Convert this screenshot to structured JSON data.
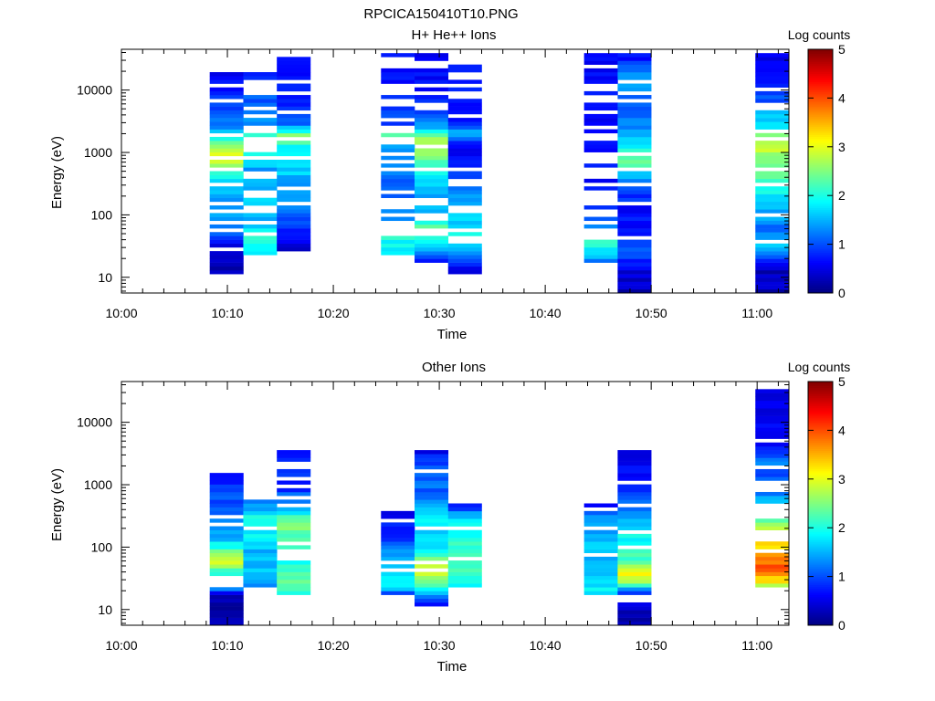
{
  "figure_title": "RPCICA150410T10.PNG",
  "chart_data": [
    {
      "type": "heatmap",
      "title": "H+ He++ Ions",
      "xlabel": "Time",
      "ylabel": "Energy (eV)",
      "colorbar_label": "Log counts",
      "colorbar_ticks": [
        "0",
        "1",
        "2",
        "3",
        "4",
        "5"
      ],
      "colorbar_range": [
        0,
        5
      ],
      "yscale": "log",
      "ylim": [
        5.6,
        45000
      ],
      "y_ticks": [
        10,
        100,
        1000,
        10000
      ],
      "y_tick_labels": [
        "10",
        "100",
        "1000",
        "10000"
      ],
      "xlim": [
        "10:00",
        "11:03"
      ],
      "x_tick_labels": [
        "10:00",
        "10:10",
        "10:20",
        "10:30",
        "10:40",
        "10:50",
        "11:00"
      ],
      "blocks": [
        {
          "start": "10:08:20",
          "end": "10:11:30",
          "emin": 11,
          "emax": 40000,
          "profile": [
            [
              10,
              0.2
            ],
            [
              30,
              0.4
            ],
            [
              60,
              1.2
            ],
            [
              120,
              1.4
            ],
            [
              300,
              1.5
            ],
            [
              600,
              2.6
            ],
            [
              900,
              3.2
            ],
            [
              1500,
              2.3
            ],
            [
              2500,
              1.2
            ],
            [
              6000,
              0.9
            ],
            [
              20000,
              0.6
            ],
            [
              40000,
              0.5
            ]
          ],
          "fill": 0.75
        },
        {
          "start": "10:11:30",
          "end": "10:14:40",
          "emin": 22,
          "emax": 30000,
          "profile": [
            [
              22,
              1.8
            ],
            [
              40,
              2.2
            ],
            [
              80,
              1.4
            ],
            [
              200,
              1.6
            ],
            [
              500,
              1.4
            ],
            [
              1800,
              2.3
            ],
            [
              3000,
              1.3
            ],
            [
              30000,
              0.6
            ]
          ],
          "fill": 0.5
        },
        {
          "start": "10:14:40",
          "end": "10:17:50",
          "emin": 27,
          "emax": 40000,
          "profile": [
            [
              27,
              0.4
            ],
            [
              60,
              0.9
            ],
            [
              200,
              1.3
            ],
            [
              600,
              1.7
            ],
            [
              1200,
              1.9
            ],
            [
              1800,
              2.6
            ],
            [
              3000,
              1.1
            ],
            [
              10000,
              0.7
            ],
            [
              40000,
              0.6
            ]
          ],
          "fill": 0.85
        },
        {
          "start": "10:24:30",
          "end": "10:27:40",
          "emin": 22,
          "emax": 38000,
          "profile": [
            [
              22,
              1.6
            ],
            [
              50,
              2.1
            ],
            [
              100,
              1.2
            ],
            [
              300,
              1.0
            ],
            [
              1200,
              1.5
            ],
            [
              1800,
              2.7
            ],
            [
              2500,
              1.0
            ],
            [
              38000,
              0.6
            ]
          ],
          "fill": 0.6
        },
        {
          "start": "10:27:40",
          "end": "10:30:50",
          "emin": 17,
          "emax": 40000,
          "profile": [
            [
              17,
              0.5
            ],
            [
              30,
              1.5
            ],
            [
              60,
              2.4
            ],
            [
              150,
              1.3
            ],
            [
              400,
              1.9
            ],
            [
              800,
              2.3
            ],
            [
              1500,
              2.9
            ],
            [
              2500,
              1.6
            ],
            [
              6000,
              0.8
            ],
            [
              40000,
              0.6
            ]
          ],
          "fill": 0.8
        },
        {
          "start": "10:30:50",
          "end": "10:34:00",
          "emin": 11,
          "emax": 25000,
          "profile": [
            [
              11,
              0.2
            ],
            [
              25,
              1.3
            ],
            [
              50,
              1.9
            ],
            [
              120,
              1.5
            ],
            [
              250,
              1.3
            ],
            [
              500,
              0.9
            ],
            [
              1300,
              0.5
            ],
            [
              2000,
              1.7
            ],
            [
              3000,
              0.8
            ],
            [
              25000,
              0.6
            ]
          ],
          "fill": 0.65
        },
        {
          "start": "10:43:40",
          "end": "10:46:50",
          "emin": 17,
          "emax": 38000,
          "profile": [
            [
              17,
              1.2
            ],
            [
              35,
              2.1
            ],
            [
              60,
              1.6
            ],
            [
              100,
              0.8
            ],
            [
              400,
              0.7
            ],
            [
              2000,
              0.7
            ],
            [
              38000,
              0.6
            ]
          ],
          "fill": 0.55
        },
        {
          "start": "10:46:50",
          "end": "10:50:00",
          "emin": 6,
          "emax": 40000,
          "profile": [
            [
              6,
              0.3
            ],
            [
              12,
              0.4
            ],
            [
              25,
              1.1
            ],
            [
              50,
              0.6
            ],
            [
              150,
              0.7
            ],
            [
              300,
              1.1
            ],
            [
              700,
              2.3
            ],
            [
              1200,
              2.0
            ],
            [
              2500,
              1.3
            ],
            [
              6000,
              1.0
            ],
            [
              15000,
              1.4
            ],
            [
              40000,
              0.6
            ]
          ],
          "fill": 0.75
        },
        {
          "start": "10:59:50",
          "end": "11:03:00",
          "emin": 6,
          "emax": 40000,
          "profile": [
            [
              6,
              0.3
            ],
            [
              12,
              0.3
            ],
            [
              30,
              1.6
            ],
            [
              60,
              1.2
            ],
            [
              150,
              1.6
            ],
            [
              300,
              2.2
            ],
            [
              800,
              2.6
            ],
            [
              1500,
              2.9
            ],
            [
              2500,
              1.9
            ],
            [
              5000,
              1.4
            ],
            [
              10000,
              0.7
            ],
            [
              40000,
              0.6
            ]
          ],
          "fill": 0.8
        }
      ]
    },
    {
      "type": "heatmap",
      "title": "Other Ions",
      "xlabel": "Time",
      "ylabel": "Energy (eV)",
      "colorbar_label": "Log counts",
      "colorbar_ticks": [
        "0",
        "1",
        "2",
        "3",
        "4",
        "5"
      ],
      "colorbar_range": [
        0,
        5
      ],
      "yscale": "log",
      "ylim": [
        5.6,
        45000
      ],
      "y_ticks": [
        10,
        100,
        1000,
        10000
      ],
      "y_tick_labels": [
        "10",
        "100",
        "1000",
        "10000"
      ],
      "xlim": [
        "10:00",
        "11:03"
      ],
      "x_tick_labels": [
        "10:00",
        "10:10",
        "10:20",
        "10:30",
        "10:40",
        "10:50",
        "11:00"
      ],
      "blocks": [
        {
          "start": "10:08:20",
          "end": "10:11:30",
          "emin": 6,
          "emax": 2800,
          "profile": [
            [
              6,
              0.2
            ],
            [
              16,
              0.3
            ],
            [
              25,
              1.6
            ],
            [
              40,
              2.1
            ],
            [
              55,
              3.0
            ],
            [
              80,
              2.5
            ],
            [
              120,
              1.7
            ],
            [
              250,
              1.2
            ],
            [
              600,
              1.0
            ],
            [
              1000,
              0.8
            ],
            [
              2800,
              0.5
            ]
          ],
          "fill": 0.8
        },
        {
          "start": "10:11:30",
          "end": "10:14:40",
          "emin": 22,
          "emax": 800,
          "profile": [
            [
              22,
              1.3
            ],
            [
              40,
              1.6
            ],
            [
              80,
              1.5
            ],
            [
              150,
              1.8
            ],
            [
              300,
              2.0
            ],
            [
              500,
              1.2
            ],
            [
              800,
              0.6
            ]
          ],
          "fill": 0.85
        },
        {
          "start": "10:14:40",
          "end": "10:17:50",
          "emin": 17,
          "emax": 3800,
          "profile": [
            [
              17,
              2.0
            ],
            [
              30,
              2.4
            ],
            [
              60,
              1.9
            ],
            [
              120,
              2.2
            ],
            [
              250,
              2.5
            ],
            [
              400,
              1.6
            ],
            [
              1000,
              0.7
            ],
            [
              2000,
              1.0
            ],
            [
              3800,
              0.5
            ]
          ],
          "fill": 0.7
        },
        {
          "start": "10:24:30",
          "end": "10:27:40",
          "emin": 17,
          "emax": 500,
          "profile": [
            [
              17,
              0.9
            ],
            [
              25,
              1.9
            ],
            [
              40,
              1.6
            ],
            [
              80,
              1.3
            ],
            [
              150,
              0.9
            ],
            [
              300,
              0.7
            ],
            [
              500,
              0.5
            ]
          ],
          "fill": 0.8
        },
        {
          "start": "10:27:40",
          "end": "10:30:50",
          "emin": 11,
          "emax": 3500,
          "profile": [
            [
              11,
              0.3
            ],
            [
              20,
              1.6
            ],
            [
              30,
              2.6
            ],
            [
              45,
              3.0
            ],
            [
              80,
              2.0
            ],
            [
              150,
              1.6
            ],
            [
              300,
              1.9
            ],
            [
              600,
              1.1
            ],
            [
              1800,
              1.2
            ],
            [
              3500,
              0.5
            ]
          ],
          "fill": 0.8
        },
        {
          "start": "10:30:50",
          "end": "10:34:00",
          "emin": 22,
          "emax": 500,
          "profile": [
            [
              22,
              1.7
            ],
            [
              40,
              2.2
            ],
            [
              80,
              2.1
            ],
            [
              150,
              2.0
            ],
            [
              300,
              1.7
            ],
            [
              500,
              0.6
            ]
          ],
          "fill": 0.9
        },
        {
          "start": "10:43:40",
          "end": "10:46:50",
          "emin": 17,
          "emax": 500,
          "profile": [
            [
              17,
              1.9
            ],
            [
              30,
              1.7
            ],
            [
              60,
              1.4
            ],
            [
              120,
              1.6
            ],
            [
              300,
              1.3
            ],
            [
              500,
              0.6
            ]
          ],
          "fill": 0.85
        },
        {
          "start": "10:46:50",
          "end": "10:50:00",
          "emin": 6,
          "emax": 3500,
          "profile": [
            [
              6,
              0.2
            ],
            [
              11,
              0.3
            ],
            [
              20,
              1.1
            ],
            [
              30,
              2.9
            ],
            [
              40,
              3.3
            ],
            [
              60,
              2.2
            ],
            [
              120,
              2.0
            ],
            [
              300,
              1.4
            ],
            [
              700,
              0.9
            ],
            [
              1800,
              0.6
            ],
            [
              3500,
              0.5
            ]
          ],
          "fill": 0.8
        },
        {
          "start": "10:59:50",
          "end": "11:03:00",
          "emin": 22,
          "emax": 38000,
          "profile": [
            [
              22,
              2.6
            ],
            [
              30,
              3.3
            ],
            [
              45,
              4.0
            ],
            [
              70,
              3.6
            ],
            [
              110,
              3.2
            ],
            [
              180,
              3.0
            ],
            [
              300,
              2.3
            ],
            [
              500,
              1.6
            ],
            [
              800,
              1.2
            ],
            [
              1500,
              0.9
            ],
            [
              2200,
              1.5
            ],
            [
              3500,
              0.7
            ],
            [
              38000,
              0.5
            ]
          ],
          "fill": 0.8
        }
      ]
    }
  ]
}
